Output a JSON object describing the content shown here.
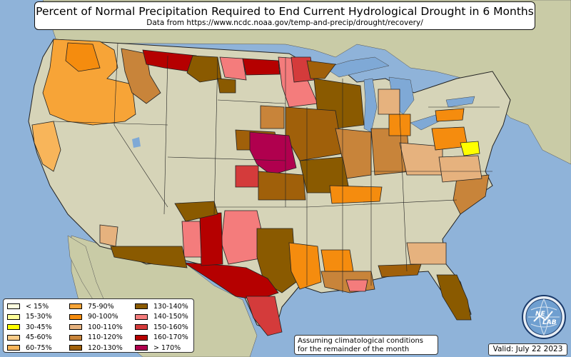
{
  "header": {
    "title": "Percent of Normal Precipitation Required to End Current Hydrological Drought in 6 Months",
    "subtitle": "Data from https://www.ncdc.noaa.gov/temp-and-precip/drought/recovery/"
  },
  "legend": {
    "columns": [
      [
        {
          "label": "< 15%",
          "color": "#ffffe0"
        },
        {
          "label": "15-30%",
          "color": "#ffff99"
        },
        {
          "label": "30-45%",
          "color": "#ffff00"
        },
        {
          "label": "45-60%",
          "color": "#f8cc8a"
        },
        {
          "label": "60-75%",
          "color": "#f8b55a"
        }
      ],
      [
        {
          "label": "75-90%",
          "color": "#f7a437"
        },
        {
          "label": "90-100%",
          "color": "#f58c0e"
        },
        {
          "label": "100-110%",
          "color": "#e6b27e"
        },
        {
          "label": "110-120%",
          "color": "#c8843a"
        },
        {
          "label": "120-130%",
          "color": "#a0600a"
        }
      ],
      [
        {
          "label": "130-140%",
          "color": "#8a5a00"
        },
        {
          "label": "140-150%",
          "color": "#f47c7c"
        },
        {
          "label": "150-160%",
          "color": "#d43b3b"
        },
        {
          "label": "160-170%",
          "color": "#b50000"
        },
        {
          "label": "> 170%",
          "color": "#b0004e"
        }
      ]
    ]
  },
  "note": {
    "line1": "Assuming climatological conditions",
    "line2": "for the remainder of the month"
  },
  "valid": "Valid: July 22 2023",
  "logo": {
    "top": "NE",
    "bottom": "LAB",
    "icon": "nelab-globe-logo"
  },
  "colors": {
    "ocean": "#8fb3d9",
    "land": "#d6d4b8",
    "foreign_land": "#c7c9a6",
    "lake": "#7fa9d6",
    "border": "#222222"
  }
}
